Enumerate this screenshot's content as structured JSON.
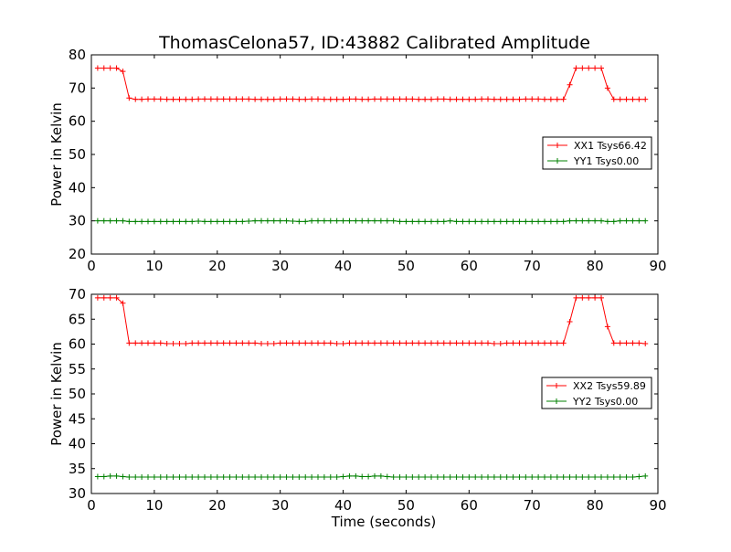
{
  "chart_title": "ThomasCelona57, ID:43882 Calibrated Amplitude",
  "chart_data": [
    {
      "type": "line",
      "title": "ThomasCelona57, ID:43882 Calibrated Amplitude",
      "xlabel": "",
      "ylabel": "Power in Kelvin",
      "xlim": [
        0,
        90
      ],
      "ylim": [
        20,
        80
      ],
      "xticks": [
        "0",
        "10",
        "20",
        "30",
        "40",
        "50",
        "60",
        "70",
        "80",
        "90"
      ],
      "yticks": [
        "20",
        "30",
        "40",
        "50",
        "60",
        "70",
        "80"
      ],
      "grid": false,
      "legend_position": "center-right",
      "series": [
        {
          "name": "XX1 Tsys66.42",
          "color": "#ff0000",
          "marker": "+",
          "x": [
            1,
            2,
            3,
            4,
            5,
            6,
            7,
            8,
            9,
            10,
            11,
            12,
            13,
            14,
            15,
            16,
            17,
            18,
            19,
            20,
            21,
            22,
            23,
            24,
            25,
            26,
            27,
            28,
            29,
            30,
            31,
            32,
            33,
            34,
            35,
            36,
            37,
            38,
            39,
            40,
            41,
            42,
            43,
            44,
            45,
            46,
            47,
            48,
            49,
            50,
            51,
            52,
            53,
            54,
            55,
            56,
            57,
            58,
            59,
            60,
            61,
            62,
            63,
            64,
            65,
            66,
            67,
            68,
            69,
            70,
            71,
            72,
            73,
            74,
            75,
            76,
            77,
            78,
            79,
            80,
            81,
            82,
            83,
            84,
            85,
            86,
            87,
            88
          ],
          "y": [
            76,
            76,
            76,
            76,
            75,
            67,
            66.6,
            66.6,
            66.7,
            66.7,
            66.7,
            66.6,
            66.6,
            66.6,
            66.6,
            66.6,
            66.7,
            66.7,
            66.7,
            66.7,
            66.7,
            66.7,
            66.7,
            66.7,
            66.7,
            66.6,
            66.6,
            66.6,
            66.6,
            66.7,
            66.7,
            66.7,
            66.6,
            66.6,
            66.7,
            66.7,
            66.6,
            66.6,
            66.6,
            66.6,
            66.7,
            66.7,
            66.6,
            66.6,
            66.7,
            66.7,
            66.7,
            66.7,
            66.7,
            66.7,
            66.7,
            66.6,
            66.6,
            66.6,
            66.7,
            66.7,
            66.6,
            66.6,
            66.6,
            66.6,
            66.6,
            66.7,
            66.7,
            66.6,
            66.6,
            66.6,
            66.6,
            66.6,
            66.7,
            66.7,
            66.7,
            66.6,
            66.6,
            66.6,
            66.6,
            71,
            76,
            76,
            76,
            76,
            76,
            70,
            66.6,
            66.6,
            66.6,
            66.6,
            66.6,
            66.6
          ]
        },
        {
          "name": "YY1 Tsys0.00",
          "color": "#008000",
          "marker": "+",
          "x": [
            1,
            2,
            3,
            4,
            5,
            6,
            7,
            8,
            9,
            10,
            11,
            12,
            13,
            14,
            15,
            16,
            17,
            18,
            19,
            20,
            21,
            22,
            23,
            24,
            25,
            26,
            27,
            28,
            29,
            30,
            31,
            32,
            33,
            34,
            35,
            36,
            37,
            38,
            39,
            40,
            41,
            42,
            43,
            44,
            45,
            46,
            47,
            48,
            49,
            50,
            51,
            52,
            53,
            54,
            55,
            56,
            57,
            58,
            59,
            60,
            61,
            62,
            63,
            64,
            65,
            66,
            67,
            68,
            69,
            70,
            71,
            72,
            73,
            74,
            75,
            76,
            77,
            78,
            79,
            80,
            81,
            82,
            83,
            84,
            85,
            86,
            87,
            88
          ],
          "y": [
            30,
            30,
            30,
            30,
            30,
            29.8,
            29.8,
            29.8,
            29.8,
            29.8,
            29.8,
            29.8,
            29.8,
            29.8,
            29.8,
            29.8,
            29.9,
            29.8,
            29.8,
            29.8,
            29.8,
            29.8,
            29.8,
            29.8,
            29.9,
            30,
            30,
            30,
            30,
            30,
            30,
            29.9,
            29.8,
            29.8,
            30,
            30,
            30,
            30,
            30,
            30,
            30,
            30,
            30,
            30,
            30,
            30,
            30,
            30,
            29.8,
            29.8,
            29.8,
            29.8,
            29.8,
            29.8,
            29.8,
            29.8,
            30,
            29.8,
            29.8,
            29.8,
            29.8,
            29.8,
            29.8,
            29.8,
            29.8,
            29.8,
            29.8,
            29.8,
            29.8,
            29.8,
            29.8,
            29.8,
            29.8,
            29.8,
            29.8,
            30,
            30,
            30,
            30,
            30,
            30,
            29.8,
            29.8,
            30,
            30,
            30,
            30,
            30
          ]
        }
      ]
    },
    {
      "type": "line",
      "title": "",
      "xlabel": "Time (seconds)",
      "ylabel": "Power in Kelvin",
      "xlim": [
        0,
        90
      ],
      "ylim": [
        30,
        70
      ],
      "xticks": [
        "0",
        "10",
        "20",
        "30",
        "40",
        "50",
        "60",
        "70",
        "80",
        "90"
      ],
      "yticks": [
        "30",
        "35",
        "40",
        "45",
        "50",
        "55",
        "60",
        "65",
        "70"
      ],
      "grid": false,
      "legend_position": "center-right",
      "series": [
        {
          "name": "XX2 Tsys59.89",
          "color": "#ff0000",
          "marker": "+",
          "x": [
            1,
            2,
            3,
            4,
            5,
            6,
            7,
            8,
            9,
            10,
            11,
            12,
            13,
            14,
            15,
            16,
            17,
            18,
            19,
            20,
            21,
            22,
            23,
            24,
            25,
            26,
            27,
            28,
            29,
            30,
            31,
            32,
            33,
            34,
            35,
            36,
            37,
            38,
            39,
            40,
            41,
            42,
            43,
            44,
            45,
            46,
            47,
            48,
            49,
            50,
            51,
            52,
            53,
            54,
            55,
            56,
            57,
            58,
            59,
            60,
            61,
            62,
            63,
            64,
            65,
            66,
            67,
            68,
            69,
            70,
            71,
            72,
            73,
            74,
            75,
            76,
            77,
            78,
            79,
            80,
            81,
            82,
            83,
            84,
            85,
            86,
            87,
            88
          ],
          "y": [
            69.3,
            69.3,
            69.3,
            69.3,
            68.2,
            60.2,
            60.2,
            60.2,
            60.2,
            60.2,
            60.2,
            60.1,
            60.1,
            60.1,
            60.1,
            60.2,
            60.2,
            60.2,
            60.2,
            60.2,
            60.2,
            60.2,
            60.2,
            60.2,
            60.2,
            60.2,
            60.1,
            60.1,
            60.1,
            60.2,
            60.2,
            60.2,
            60.2,
            60.2,
            60.2,
            60.2,
            60.2,
            60.2,
            60.1,
            60.1,
            60.2,
            60.2,
            60.2,
            60.2,
            60.2,
            60.2,
            60.2,
            60.2,
            60.2,
            60.2,
            60.2,
            60.2,
            60.2,
            60.2,
            60.2,
            60.2,
            60.2,
            60.2,
            60.2,
            60.2,
            60.2,
            60.2,
            60.2,
            60.1,
            60.1,
            60.2,
            60.2,
            60.2,
            60.2,
            60.2,
            60.2,
            60.2,
            60.2,
            60.2,
            60.2,
            64.5,
            69.3,
            69.3,
            69.3,
            69.3,
            69.3,
            63.5,
            60.2,
            60.2,
            60.2,
            60.2,
            60.2,
            60.1
          ]
        },
        {
          "name": "YY2 Tsys0.00",
          "color": "#008000",
          "marker": "+",
          "x": [
            1,
            2,
            3,
            4,
            5,
            6,
            7,
            8,
            9,
            10,
            11,
            12,
            13,
            14,
            15,
            16,
            17,
            18,
            19,
            20,
            21,
            22,
            23,
            24,
            25,
            26,
            27,
            28,
            29,
            30,
            31,
            32,
            33,
            34,
            35,
            36,
            37,
            38,
            39,
            40,
            41,
            42,
            43,
            44,
            45,
            46,
            47,
            48,
            49,
            50,
            51,
            52,
            53,
            54,
            55,
            56,
            57,
            58,
            59,
            60,
            61,
            62,
            63,
            64,
            65,
            66,
            67,
            68,
            69,
            70,
            71,
            72,
            73,
            74,
            75,
            76,
            77,
            78,
            79,
            80,
            81,
            82,
            83,
            84,
            85,
            86,
            87,
            88
          ],
          "y": [
            33.4,
            33.4,
            33.5,
            33.5,
            33.4,
            33.3,
            33.3,
            33.3,
            33.3,
            33.3,
            33.3,
            33.3,
            33.3,
            33.3,
            33.3,
            33.3,
            33.3,
            33.3,
            33.3,
            33.3,
            33.3,
            33.3,
            33.3,
            33.3,
            33.3,
            33.3,
            33.3,
            33.3,
            33.3,
            33.3,
            33.3,
            33.3,
            33.3,
            33.3,
            33.3,
            33.3,
            33.3,
            33.3,
            33.3,
            33.4,
            33.5,
            33.5,
            33.4,
            33.4,
            33.5,
            33.5,
            33.4,
            33.3,
            33.3,
            33.3,
            33.3,
            33.3,
            33.3,
            33.3,
            33.3,
            33.3,
            33.3,
            33.3,
            33.3,
            33.3,
            33.3,
            33.3,
            33.3,
            33.3,
            33.3,
            33.3,
            33.3,
            33.3,
            33.3,
            33.3,
            33.3,
            33.3,
            33.3,
            33.3,
            33.3,
            33.3,
            33.3,
            33.3,
            33.3,
            33.3,
            33.3,
            33.3,
            33.3,
            33.3,
            33.3,
            33.3,
            33.4,
            33.5
          ]
        }
      ]
    }
  ]
}
